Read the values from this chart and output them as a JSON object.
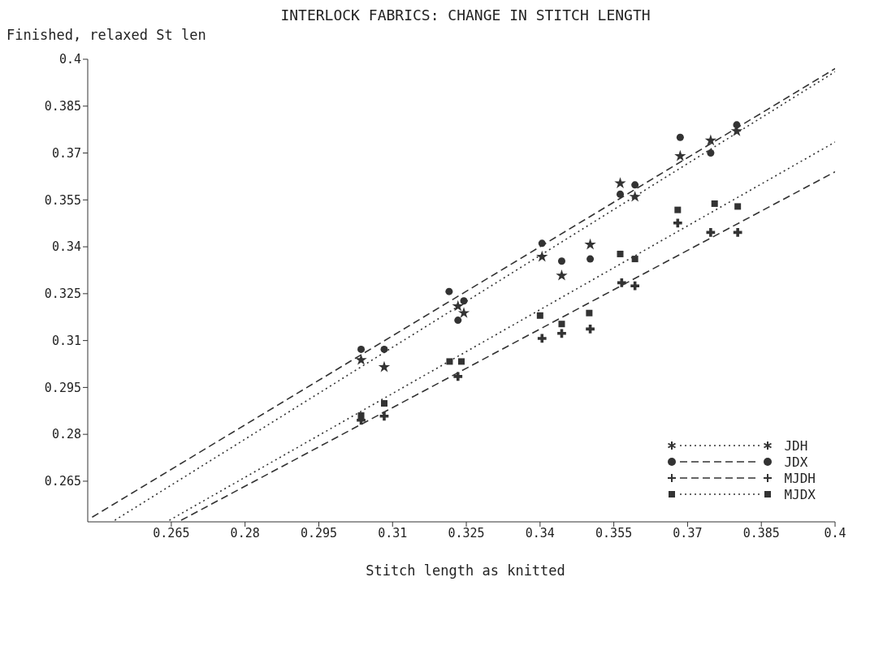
{
  "chart_data": {
    "type": "scatter",
    "title": "INTERLOCK FABRICS: CHANGE IN STITCH LENGTH",
    "xlabel": "Stitch length as knitted",
    "ylabel": "Finished, relaxed St len",
    "xlim": [
      0.248,
      0.4
    ],
    "ylim": [
      0.252,
      0.4
    ],
    "xticks": [
      0.265,
      0.28,
      0.295,
      0.31,
      0.325,
      0.34,
      0.355,
      0.37,
      0.385,
      0.4
    ],
    "yticks": [
      0.265,
      0.28,
      0.295,
      0.31,
      0.325,
      0.34,
      0.355,
      0.37,
      0.385,
      0.4
    ],
    "legend": "bottom right",
    "series": [
      {
        "name": "JDH",
        "marker": "star",
        "color": "#333333",
        "x": [
          0.3036,
          0.3083,
          0.3233,
          0.3245,
          0.3404,
          0.3444,
          0.3502,
          0.3563,
          0.3593,
          0.3685,
          0.3747,
          0.38
        ],
        "values": [
          0.3038,
          0.3015,
          0.321,
          0.3188,
          0.3368,
          0.3308,
          0.3407,
          0.3603,
          0.356,
          0.369,
          0.374,
          0.377
        ]
      },
      {
        "type": "line",
        "line_style": "dotted",
        "color": "#333333",
        "x": [
          0.2535,
          0.4
        ],
        "values": [
          0.2525,
          0.396
        ]
      },
      {
        "name": "JDX",
        "marker": "circle",
        "color": "#333333",
        "x": [
          0.3036,
          0.3083,
          0.3215,
          0.3245,
          0.3233,
          0.3404,
          0.3444,
          0.3502,
          0.3563,
          0.3593,
          0.3685,
          0.3747,
          0.38
        ],
        "values": [
          0.3072,
          0.3072,
          0.3257,
          0.3227,
          0.3165,
          0.3411,
          0.3354,
          0.3361,
          0.3568,
          0.3598,
          0.375,
          0.37,
          0.379
        ]
      },
      {
        "type": "line",
        "line_style": "dashed",
        "color": "#333333",
        "x": [
          0.2489,
          0.4
        ],
        "values": [
          0.2535,
          0.397
        ]
      },
      {
        "name": "MJDH",
        "marker": "cross",
        "color": "#333333",
        "x": [
          0.3036,
          0.3083,
          0.3233,
          0.3404,
          0.3444,
          0.3502,
          0.3566,
          0.3593,
          0.368,
          0.3747,
          0.3802
        ],
        "values": [
          0.2845,
          0.2858,
          0.2985,
          0.3107,
          0.3123,
          0.3137,
          0.3285,
          0.3275,
          0.3476,
          0.3446,
          0.3446
        ]
      },
      {
        "type": "line",
        "line_style": "dashed",
        "color": "#333333",
        "x": [
          0.267,
          0.4
        ],
        "values": [
          0.2525,
          0.364
        ]
      },
      {
        "name": "MJDX",
        "marker": "square",
        "color": "#333333",
        "x": [
          0.3036,
          0.3083,
          0.3216,
          0.324,
          0.34,
          0.3444,
          0.35,
          0.3563,
          0.3593,
          0.368,
          0.3755,
          0.3802
        ],
        "values": [
          0.286,
          0.2899,
          0.3033,
          0.3033,
          0.318,
          0.3153,
          0.3188,
          0.3377,
          0.3361,
          0.3518,
          0.3538,
          0.3529
        ]
      },
      {
        "type": "line",
        "line_style": "dotted",
        "color": "#333333",
        "x": [
          0.2646,
          0.4
        ],
        "values": [
          0.2525,
          0.3735
        ]
      }
    ]
  }
}
